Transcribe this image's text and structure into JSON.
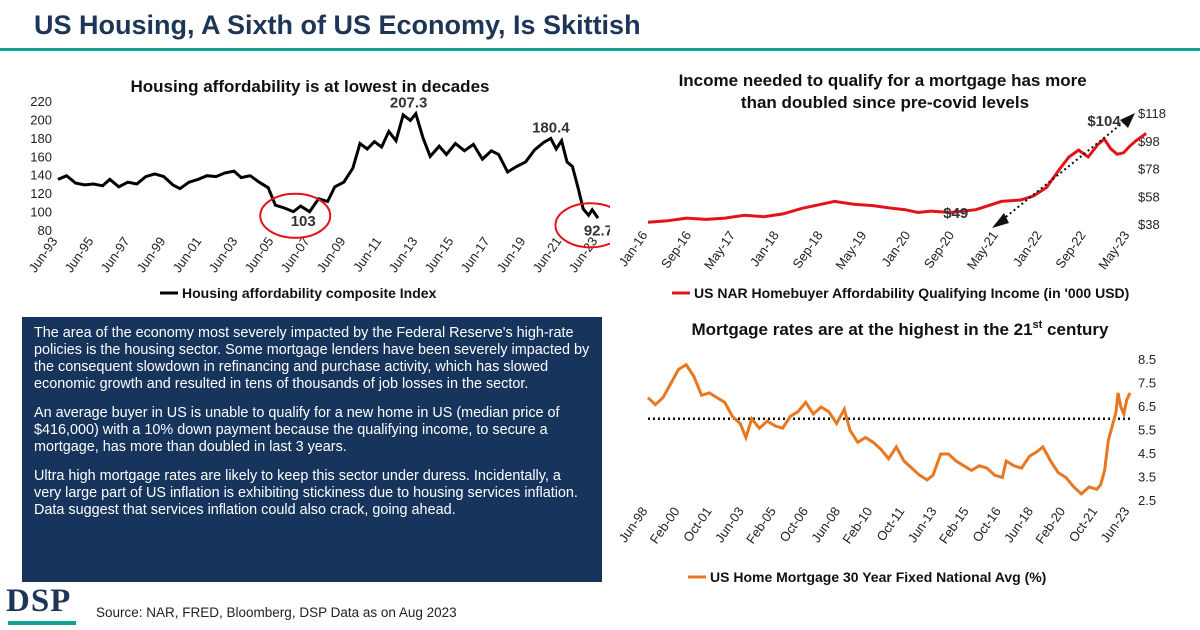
{
  "header": {
    "title": "US Housing, A Sixth of US Economy, Is Skittish"
  },
  "chart_data": [
    {
      "type": "line",
      "title": "Housing affordability is at lowest in decades",
      "legend": "Housing affordability composite Index",
      "legend_position": "bottom",
      "color": "#000000",
      "ylim": [
        80,
        220
      ],
      "yticks": [
        "220",
        "200",
        "180",
        "160",
        "140",
        "120",
        "100",
        "80"
      ],
      "xticks": [
        "Jun-93",
        "Jun-95",
        "Jun-97",
        "Jun-99",
        "Jun-01",
        "Jun-03",
        "Jun-05",
        "Jun-07",
        "Jun-09",
        "Jun-11",
        "Jun-13",
        "Jun-15",
        "Jun-17",
        "Jun-19",
        "Jun-21",
        "Jun-23"
      ],
      "x_start": 1993.42,
      "x_end": 2023.42,
      "annotations": [
        {
          "label": "207.3",
          "x": 2012.9,
          "y": 207.3,
          "circled": false
        },
        {
          "label": "180.4",
          "x": 2020.8,
          "y": 180.4,
          "circled": false
        },
        {
          "label": "103",
          "x": 2006.6,
          "y": 103,
          "circled": true
        },
        {
          "label": "92.7",
          "x": 2023.0,
          "y": 92.7,
          "circled": true
        }
      ],
      "points": [
        [
          1993.42,
          136
        ],
        [
          1993.9,
          140
        ],
        [
          1994.4,
          132
        ],
        [
          1994.9,
          130
        ],
        [
          1995.4,
          131
        ],
        [
          1995.9,
          129
        ],
        [
          1996.3,
          136
        ],
        [
          1996.8,
          128
        ],
        [
          1997.3,
          133
        ],
        [
          1997.8,
          131
        ],
        [
          1998.3,
          139
        ],
        [
          1998.8,
          142
        ],
        [
          1999.3,
          139
        ],
        [
          1999.8,
          130
        ],
        [
          2000.2,
          126
        ],
        [
          2000.7,
          133
        ],
        [
          2001.2,
          136
        ],
        [
          2001.7,
          140
        ],
        [
          2002.2,
          139
        ],
        [
          2002.7,
          143
        ],
        [
          2003.2,
          145
        ],
        [
          2003.6,
          138
        ],
        [
          2004.1,
          140
        ],
        [
          2004.6,
          133
        ],
        [
          2005.1,
          127
        ],
        [
          2005.5,
          108
        ],
        [
          2006.0,
          105
        ],
        [
          2006.5,
          101
        ],
        [
          2006.9,
          107
        ],
        [
          2007.4,
          101
        ],
        [
          2007.9,
          115
        ],
        [
          2008.4,
          112
        ],
        [
          2008.8,
          128
        ],
        [
          2009.3,
          133
        ],
        [
          2009.8,
          148
        ],
        [
          2010.2,
          175
        ],
        [
          2010.6,
          169
        ],
        [
          2011.0,
          177
        ],
        [
          2011.4,
          171
        ],
        [
          2011.8,
          188
        ],
        [
          2012.2,
          178
        ],
        [
          2012.6,
          206
        ],
        [
          2013.0,
          200
        ],
        [
          2013.3,
          207.3
        ],
        [
          2013.7,
          181
        ],
        [
          2014.1,
          161
        ],
        [
          2014.6,
          172
        ],
        [
          2015.0,
          163
        ],
        [
          2015.5,
          175
        ],
        [
          2016.0,
          167
        ],
        [
          2016.5,
          174
        ],
        [
          2017.0,
          158
        ],
        [
          2017.5,
          167
        ],
        [
          2017.9,
          163
        ],
        [
          2018.4,
          144
        ],
        [
          2018.9,
          150
        ],
        [
          2019.4,
          155
        ],
        [
          2019.9,
          168
        ],
        [
          2020.4,
          176
        ],
        [
          2020.8,
          180.4
        ],
        [
          2021.1,
          169
        ],
        [
          2021.4,
          178
        ],
        [
          2021.7,
          155
        ],
        [
          2022.0,
          150
        ],
        [
          2022.3,
          128
        ],
        [
          2022.6,
          104
        ],
        [
          2022.9,
          97
        ],
        [
          2023.1,
          103
        ],
        [
          2023.42,
          94
        ]
      ]
    },
    {
      "type": "line",
      "title": "Income needed to qualify for a mortgage has more than doubled since pre-covid levels",
      "legend": "US NAR Homebuyer Affordability Qualifying Income (in '000 USD)",
      "legend_position": "bottom",
      "color": "#e3121b",
      "y_axis_side": "right",
      "ylim": [
        38,
        118
      ],
      "yticks": [
        "$118",
        "$98",
        "$78",
        "$58",
        "$38"
      ],
      "xticks": [
        "Jan-16",
        "Sep-16",
        "May-17",
        "Jan-18",
        "Sep-18",
        "May-19",
        "Jan-20",
        "Sep-20",
        "May-21",
        "Jan-22",
        "Sep-22",
        "May-23"
      ],
      "x_start": 2016.0,
      "x_end": 2023.5,
      "annotations": [
        {
          "label": "$49",
          "x": 2021.1,
          "y": 49
        },
        {
          "label": "$104",
          "x": 2023.4,
          "y": 104
        }
      ],
      "points": [
        [
          2016.0,
          40
        ],
        [
          2016.3,
          41
        ],
        [
          2016.6,
          43
        ],
        [
          2016.9,
          42
        ],
        [
          2017.2,
          43
        ],
        [
          2017.5,
          45
        ],
        [
          2017.8,
          44
        ],
        [
          2018.1,
          46
        ],
        [
          2018.4,
          50
        ],
        [
          2018.7,
          53
        ],
        [
          2018.9,
          55
        ],
        [
          2019.2,
          53
        ],
        [
          2019.5,
          52
        ],
        [
          2019.8,
          50
        ],
        [
          2020.0,
          49
        ],
        [
          2020.2,
          47
        ],
        [
          2020.4,
          48
        ],
        [
          2020.7,
          47
        ],
        [
          2020.9,
          48
        ],
        [
          2021.1,
          49
        ],
        [
          2021.3,
          52
        ],
        [
          2021.5,
          55
        ],
        [
          2021.8,
          56
        ],
        [
          2022.0,
          59
        ],
        [
          2022.2,
          65
        ],
        [
          2022.4,
          78
        ],
        [
          2022.55,
          87
        ],
        [
          2022.7,
          92
        ],
        [
          2022.85,
          87
        ],
        [
          2023.0,
          96
        ],
        [
          2023.1,
          100
        ],
        [
          2023.2,
          93
        ],
        [
          2023.3,
          89
        ],
        [
          2023.4,
          90
        ],
        [
          2023.5,
          95
        ],
        [
          2023.6,
          99
        ],
        [
          2023.75,
          104
        ]
      ]
    },
    {
      "type": "line",
      "title": "Mortgage rates are at the highest in the 21st century",
      "title_main": "Mortgage rates are at the highest in the 21",
      "title_sup": "st",
      "title_end": " century",
      "legend": "US Home Mortgage 30 Year Fixed National Avg (%)",
      "legend_position": "bottom",
      "color": "#e87722",
      "y_axis_side": "right",
      "ylim": [
        2.5,
        8.5
      ],
      "yticks": [
        "8.5",
        "7.5",
        "6.5",
        "5.5",
        "4.5",
        "3.5",
        "2.5"
      ],
      "xticks": [
        "Jun-98",
        "Feb-00",
        "Oct-01",
        "Jun-03",
        "Feb-05",
        "Oct-06",
        "Jun-08",
        "Feb-10",
        "Oct-11",
        "Jun-13",
        "Feb-15",
        "Oct-16",
        "Jun-18",
        "Feb-20",
        "Oct-21",
        "Jun-23"
      ],
      "x_start": 1998.42,
      "x_end": 2023.42,
      "reference_line": 6.0,
      "points": [
        [
          1998.42,
          6.9
        ],
        [
          1998.8,
          6.6
        ],
        [
          1999.2,
          6.9
        ],
        [
          1999.6,
          7.5
        ],
        [
          2000.0,
          8.1
        ],
        [
          2000.4,
          8.3
        ],
        [
          2000.8,
          7.8
        ],
        [
          2001.2,
          7.0
        ],
        [
          2001.6,
          7.1
        ],
        [
          2002.0,
          6.9
        ],
        [
          2002.4,
          6.7
        ],
        [
          2002.8,
          6.1
        ],
        [
          2003.2,
          5.8
        ],
        [
          2003.5,
          5.2
        ],
        [
          2003.8,
          6.0
        ],
        [
          2004.2,
          5.6
        ],
        [
          2004.6,
          5.9
        ],
        [
          2005.0,
          5.7
        ],
        [
          2005.4,
          5.6
        ],
        [
          2005.8,
          6.1
        ],
        [
          2006.2,
          6.3
        ],
        [
          2006.6,
          6.7
        ],
        [
          2007.0,
          6.2
        ],
        [
          2007.4,
          6.5
        ],
        [
          2007.8,
          6.3
        ],
        [
          2008.2,
          5.8
        ],
        [
          2008.6,
          6.4
        ],
        [
          2008.9,
          5.5
        ],
        [
          2009.3,
          5.0
        ],
        [
          2009.7,
          5.2
        ],
        [
          2010.1,
          5.0
        ],
        [
          2010.5,
          4.7
        ],
        [
          2010.9,
          4.3
        ],
        [
          2011.3,
          4.8
        ],
        [
          2011.7,
          4.2
        ],
        [
          2012.1,
          3.9
        ],
        [
          2012.5,
          3.6
        ],
        [
          2012.9,
          3.4
        ],
        [
          2013.2,
          3.6
        ],
        [
          2013.6,
          4.5
        ],
        [
          2014.0,
          4.5
        ],
        [
          2014.4,
          4.2
        ],
        [
          2014.8,
          4.0
        ],
        [
          2015.2,
          3.8
        ],
        [
          2015.6,
          4.0
        ],
        [
          2016.0,
          3.9
        ],
        [
          2016.4,
          3.6
        ],
        [
          2016.8,
          3.5
        ],
        [
          2017.0,
          4.2
        ],
        [
          2017.4,
          4.0
        ],
        [
          2017.8,
          3.9
        ],
        [
          2018.2,
          4.4
        ],
        [
          2018.6,
          4.6
        ],
        [
          2018.9,
          4.8
        ],
        [
          2019.3,
          4.2
        ],
        [
          2019.7,
          3.7
        ],
        [
          2020.1,
          3.5
        ],
        [
          2020.5,
          3.1
        ],
        [
          2020.9,
          2.8
        ],
        [
          2021.3,
          3.1
        ],
        [
          2021.7,
          3.0
        ],
        [
          2021.9,
          3.2
        ],
        [
          2022.1,
          3.8
        ],
        [
          2022.3,
          5.1
        ],
        [
          2022.5,
          5.7
        ],
        [
          2022.7,
          6.3
        ],
        [
          2022.8,
          7.1
        ],
        [
          2022.95,
          6.5
        ],
        [
          2023.1,
          6.2
        ],
        [
          2023.25,
          6.8
        ],
        [
          2023.42,
          7.1
        ]
      ]
    }
  ],
  "commentary": {
    "p1": "The area of the economy most severely impacted by the Federal Reserve's high-rate policies is the housing sector. Some mortgage lenders have been severely impacted by the consequent slowdown in refinancing and purchase activity, which has slowed economic growth and resulted in tens of thousands of job losses in the sector.",
    "p2": "An average buyer in US is unable to qualify for a new home in US (median price of $416,000) with a 10% down payment because the qualifying income, to secure a mortgage, has more than doubled in last 3 years.",
    "p3": "Ultra high mortgage rates are likely to keep this sector under duress. Incidentally, a very large part of US inflation is exhibiting stickiness due to housing services inflation. Data suggest that services inflation could also crack, going ahead."
  },
  "footer": {
    "logo": "DSP",
    "source": "Source: NAR, FRED, Bloomberg, DSP Data as on Aug 2023"
  },
  "colors": {
    "title": "#1d3557",
    "accent": "#10a295",
    "textbox_bg": "#16345c"
  }
}
